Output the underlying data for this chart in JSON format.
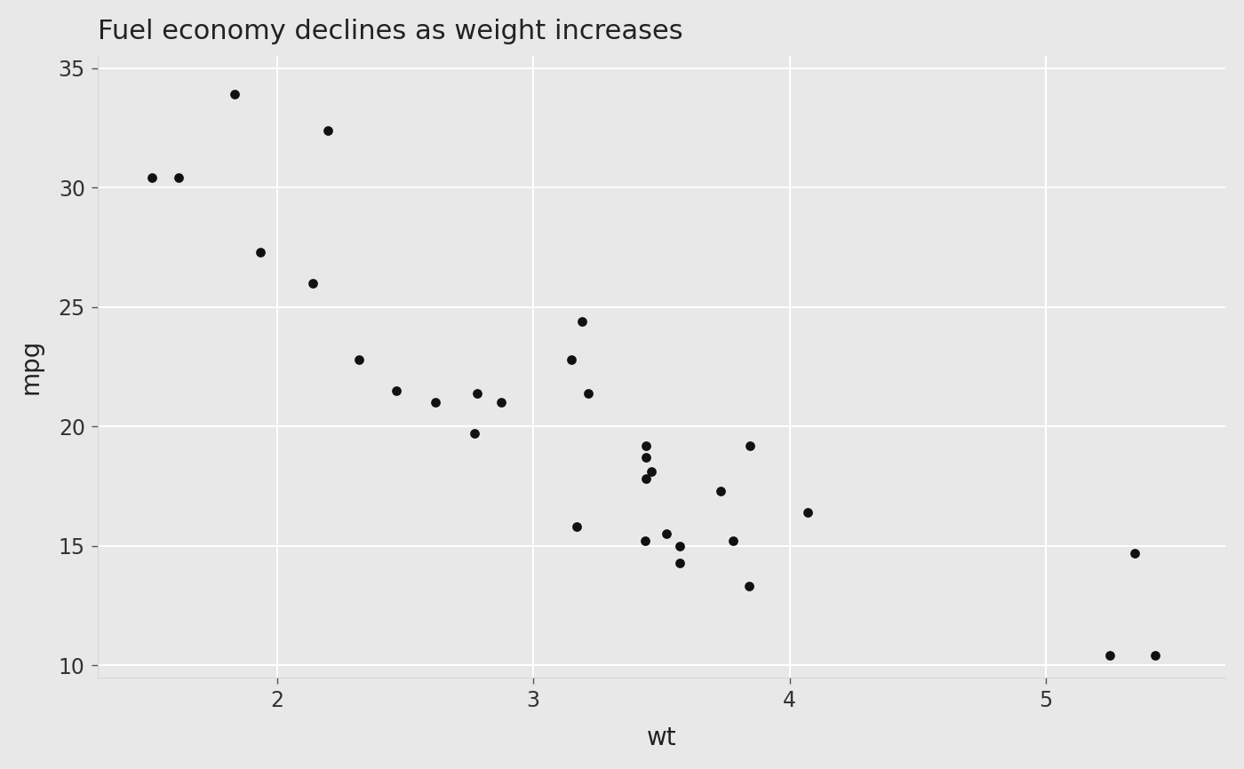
{
  "title": "Fuel economy declines as weight increases",
  "xlabel": "wt",
  "ylabel": "mpg",
  "bg_color": "#E8E8E8",
  "grid_color": "#FFFFFF",
  "point_color": "#111111",
  "title_fontsize": 22,
  "label_fontsize": 20,
  "tick_fontsize": 17,
  "xlim": [
    1.3,
    5.7
  ],
  "ylim": [
    9.5,
    35.5
  ],
  "xticks": [
    2,
    3,
    4,
    5
  ],
  "yticks": [
    10,
    15,
    20,
    25,
    30,
    35
  ],
  "wt": [
    2.62,
    2.875,
    2.32,
    3.215,
    3.44,
    3.46,
    3.57,
    3.19,
    3.15,
    3.44,
    3.44,
    4.07,
    3.73,
    3.78,
    5.25,
    5.424,
    5.345,
    2.2,
    1.615,
    1.835,
    2.465,
    3.52,
    3.435,
    3.84,
    3.845,
    1.935,
    2.14,
    1.513,
    3.17,
    2.77,
    3.57,
    2.78
  ],
  "mpg": [
    21.0,
    21.0,
    22.8,
    21.4,
    18.7,
    18.1,
    14.3,
    24.4,
    22.8,
    19.2,
    17.8,
    16.4,
    17.3,
    15.2,
    10.4,
    10.4,
    14.7,
    32.4,
    30.4,
    33.9,
    21.5,
    15.5,
    15.2,
    13.3,
    19.2,
    27.3,
    26.0,
    30.4,
    15.8,
    19.7,
    15.0,
    21.4
  ]
}
